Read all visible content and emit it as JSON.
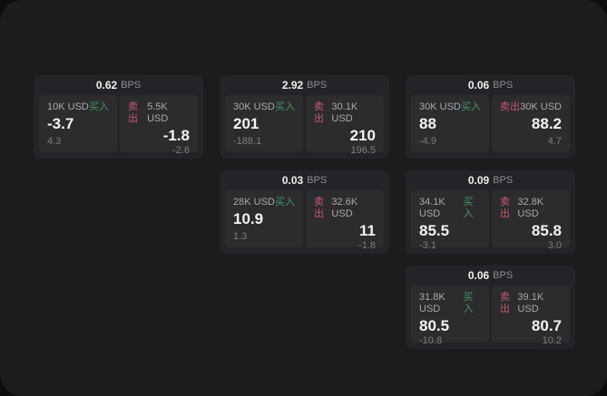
{
  "meta": {
    "bps_suffix": "BPS",
    "buy_label": "买入",
    "sell_label": "卖出"
  },
  "colors": {
    "window_bg": "#1c1c1e",
    "card_bg": "#242428",
    "panel_bg": "#2c2c2f",
    "buy_green": "#42985a",
    "sell_red": "#c9566f",
    "primary_text": "#f4f4f5",
    "muted_text": "#a9a9ad",
    "dim_text": "#7c7c80"
  },
  "cards": [
    {
      "bps": "0.62",
      "buy": {
        "size": "10K USD",
        "price": "-3.7",
        "delta": "4.3"
      },
      "sell": {
        "size": "5.5K USD",
        "price": "-1.8",
        "delta": "-2.6"
      }
    },
    {
      "bps": "2.92",
      "buy": {
        "size": "30K USD",
        "price": "201",
        "delta": "-188.1"
      },
      "sell": {
        "size": "30.1K USD",
        "price": "210",
        "delta": "196.5"
      }
    },
    {
      "bps": "0.06",
      "buy": {
        "size": "30K USD",
        "price": "88",
        "delta": "-4.9"
      },
      "sell": {
        "size": "30K USD",
        "price": "88.2",
        "delta": "4.7"
      }
    },
    {
      "bps": "0.03",
      "buy": {
        "size": "28K USD",
        "price": "10.9",
        "delta": "1.3"
      },
      "sell": {
        "size": "32.6K USD",
        "price": "11",
        "delta": "-1.8"
      }
    },
    {
      "bps": "0.09",
      "buy": {
        "size": "34.1K USD",
        "price": "85.5",
        "delta": "-3.1"
      },
      "sell": {
        "size": "32.8K USD",
        "price": "85.8",
        "delta": "3.0"
      }
    },
    {
      "bps": "0.06",
      "buy": {
        "size": "31.8K USD",
        "price": "80.5",
        "delta": "-10.8"
      },
      "sell": {
        "size": "39.1K USD",
        "price": "80.7",
        "delta": "10.2"
      }
    }
  ]
}
